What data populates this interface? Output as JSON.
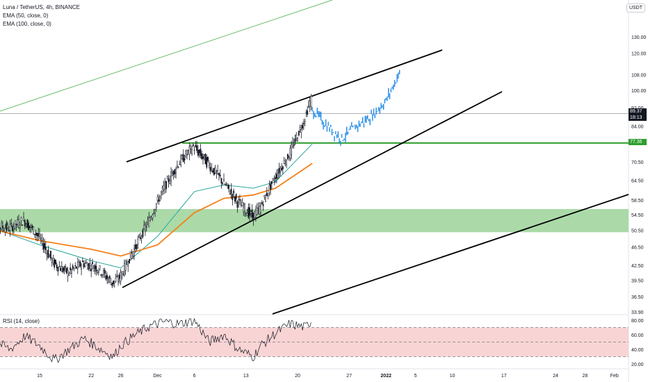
{
  "header": {
    "symbol": "Luna / TetherUS, 4h, BINANCE",
    "ema50": "EMA (50, close, 0)",
    "ema100": "EMA (100, close, 0)",
    "currency": "USDT",
    "rsi": "RSI (14, close)"
  },
  "price_tags": {
    "last_price": "89.37",
    "countdown": "18:13",
    "level": "77.36"
  },
  "colors": {
    "support_zone": "#a7d8a3",
    "level_line": "#2e9e2e",
    "channel": "#000000",
    "ema50": "#26a69a",
    "ema100": "#f57f17",
    "projection": "#1e88e5",
    "trend_far": "#66bb6a",
    "rsi_band": "#f8c9c9",
    "tag_dark": "#131722",
    "tag_green": "#2e9e2e"
  },
  "chart_data": [
    {
      "type": "candlestick",
      "title": "Luna / TetherUS, 4h, BINANCE",
      "y_scale": "log",
      "ylim": [
        32,
        145
      ],
      "x_ticks": [
        "15",
        "22",
        "26",
        "Dec",
        "6",
        "13",
        "20",
        "27",
        "2022",
        "5",
        "10",
        "17",
        "24",
        "28",
        "Feb"
      ],
      "x_tick_dates": [
        "2021-11-15",
        "2021-11-22",
        "2021-11-26",
        "2021-12-01",
        "2021-12-06",
        "2021-12-13",
        "2021-12-20",
        "2021-12-27",
        "2022-01-01",
        "2022-01-05",
        "2022-01-10",
        "2022-01-17",
        "2022-01-24",
        "2022-01-28",
        "2022-02-01"
      ],
      "y_ticks": [
        "130.00",
        "120.00",
        "108.00",
        "100.00",
        "92.00",
        "84.00",
        "77.36",
        "70.50",
        "64.50",
        "58.50",
        "54.50",
        "50.50",
        "46.50",
        "42.50",
        "39.50",
        "36.50",
        "33.90"
      ],
      "y_tick_values": [
        130,
        120,
        108,
        100,
        92,
        84,
        77.36,
        70.5,
        64.5,
        58.5,
        54.5,
        50.5,
        46.5,
        42.5,
        39.5,
        36.5,
        33.9
      ],
      "close_series": [
        {
          "date": "2021-11-08",
          "close": 52
        },
        {
          "date": "2021-11-11",
          "close": 51
        },
        {
          "date": "2021-11-13",
          "close": 53
        },
        {
          "date": "2021-11-15",
          "close": 49
        },
        {
          "date": "2021-11-17",
          "close": 43
        },
        {
          "date": "2021-11-19",
          "close": 41
        },
        {
          "date": "2021-11-21",
          "close": 43
        },
        {
          "date": "2021-11-23",
          "close": 42
        },
        {
          "date": "2021-11-25",
          "close": 39
        },
        {
          "date": "2021-11-26",
          "close": 40
        },
        {
          "date": "2021-11-28",
          "close": 46
        },
        {
          "date": "2021-11-30",
          "close": 53
        },
        {
          "date": "2021-12-02",
          "close": 62
        },
        {
          "date": "2021-12-04",
          "close": 70
        },
        {
          "date": "2021-12-06",
          "close": 76
        },
        {
          "date": "2021-12-08",
          "close": 70
        },
        {
          "date": "2021-12-10",
          "close": 64
        },
        {
          "date": "2021-12-12",
          "close": 58
        },
        {
          "date": "2021-12-14",
          "close": 54
        },
        {
          "date": "2021-12-15",
          "close": 56
        },
        {
          "date": "2021-12-17",
          "close": 65
        },
        {
          "date": "2021-12-19",
          "close": 73
        },
        {
          "date": "2021-12-21",
          "close": 86
        },
        {
          "date": "2021-12-22",
          "close": 96
        }
      ],
      "projection_series": [
        {
          "date": "2021-12-22",
          "close": 91
        },
        {
          "date": "2021-12-24",
          "close": 84
        },
        {
          "date": "2021-12-26",
          "close": 79
        },
        {
          "date": "2021-12-28",
          "close": 84
        },
        {
          "date": "2021-12-30",
          "close": 88
        },
        {
          "date": "2022-01-01",
          "close": 95
        },
        {
          "date": "2022-01-03",
          "close": 110
        }
      ],
      "ema50_series": [
        {
          "date": "2021-11-08",
          "value": 51.5
        },
        {
          "date": "2021-11-15",
          "value": 47
        },
        {
          "date": "2021-11-22",
          "value": 43.5
        },
        {
          "date": "2021-11-26",
          "value": 42
        },
        {
          "date": "2021-12-01",
          "value": 49
        },
        {
          "date": "2021-12-06",
          "value": 61
        },
        {
          "date": "2021-12-10",
          "value": 63
        },
        {
          "date": "2021-12-14",
          "value": 62
        },
        {
          "date": "2021-12-17",
          "value": 64
        },
        {
          "date": "2021-12-22",
          "value": 77
        }
      ],
      "ema100_series": [
        {
          "date": "2021-11-08",
          "value": 51
        },
        {
          "date": "2021-11-15",
          "value": 48
        },
        {
          "date": "2021-11-22",
          "value": 46
        },
        {
          "date": "2021-11-26",
          "value": 44.5
        },
        {
          "date": "2021-12-01",
          "value": 47
        },
        {
          "date": "2021-12-06",
          "value": 55
        },
        {
          "date": "2021-12-10",
          "value": 59
        },
        {
          "date": "2021-12-14",
          "value": 60
        },
        {
          "date": "2021-12-17",
          "value": 62
        },
        {
          "date": "2021-12-22",
          "value": 70
        }
      ],
      "support_zone": [
        50,
        56
      ],
      "horizontal_level": 77.36,
      "last_price": 89.37
    },
    {
      "type": "line",
      "title": "RSI (14, close)",
      "ylim": [
        15,
        82
      ],
      "y_ticks": [
        "80.00",
        "60.00",
        "40.00",
        "20.00"
      ],
      "y_tick_values": [
        80,
        60,
        40,
        20
      ],
      "band": [
        30,
        70
      ],
      "series": [
        {
          "date": "2021-11-08",
          "value": 55
        },
        {
          "date": "2021-11-11",
          "value": 40
        },
        {
          "date": "2021-11-13",
          "value": 58
        },
        {
          "date": "2021-11-15",
          "value": 45
        },
        {
          "date": "2021-11-17",
          "value": 25
        },
        {
          "date": "2021-11-19",
          "value": 40
        },
        {
          "date": "2021-11-21",
          "value": 55
        },
        {
          "date": "2021-11-23",
          "value": 42
        },
        {
          "date": "2021-11-25",
          "value": 30
        },
        {
          "date": "2021-11-26",
          "value": 45
        },
        {
          "date": "2021-11-28",
          "value": 60
        },
        {
          "date": "2021-11-30",
          "value": 72
        },
        {
          "date": "2021-12-02",
          "value": 78
        },
        {
          "date": "2021-12-04",
          "value": 75
        },
        {
          "date": "2021-12-06",
          "value": 80
        },
        {
          "date": "2021-12-08",
          "value": 50
        },
        {
          "date": "2021-12-10",
          "value": 60
        },
        {
          "date": "2021-12-12",
          "value": 40
        },
        {
          "date": "2021-12-14",
          "value": 30
        },
        {
          "date": "2021-12-15",
          "value": 45
        },
        {
          "date": "2021-12-17",
          "value": 62
        },
        {
          "date": "2021-12-19",
          "value": 75
        },
        {
          "date": "2021-12-21",
          "value": 70
        },
        {
          "date": "2021-12-22",
          "value": 80
        }
      ]
    }
  ]
}
